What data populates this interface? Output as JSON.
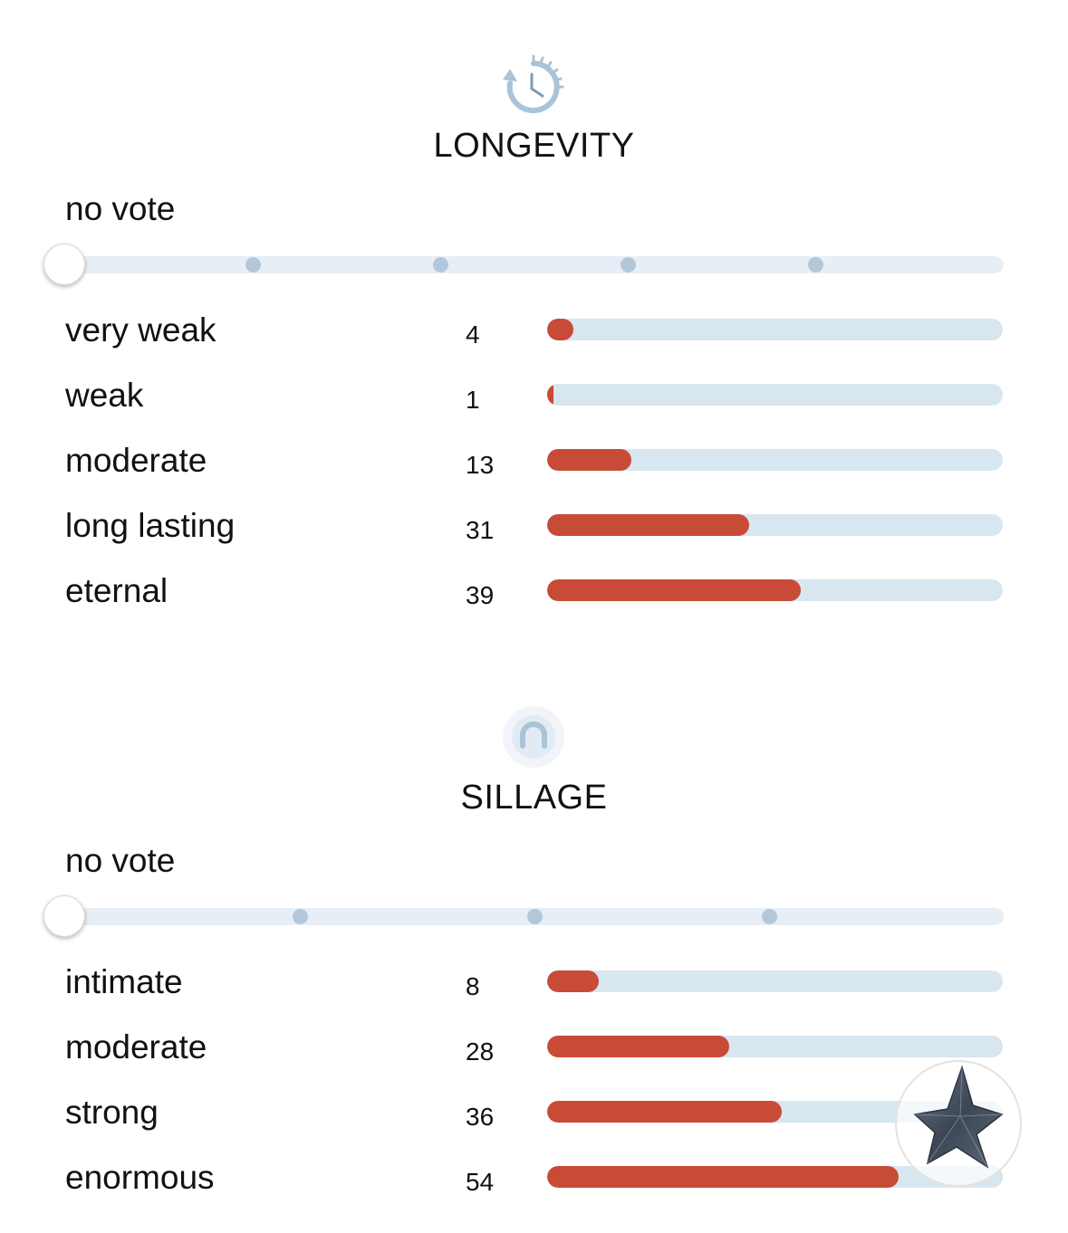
{
  "longevity": {
    "icon": "clock-icon",
    "title": "LONGEVITY",
    "vote_label": "no vote",
    "slider_stops": 6,
    "rows": [
      {
        "label": "very weak",
        "count": "4"
      },
      {
        "label": "weak",
        "count": "1"
      },
      {
        "label": "moderate",
        "count": "13"
      },
      {
        "label": "long lasting",
        "count": "31"
      },
      {
        "label": "eternal",
        "count": "39"
      }
    ]
  },
  "sillage": {
    "icon": "sillage-icon",
    "title": "SILLAGE",
    "vote_label": "no vote",
    "slider_stops": 5,
    "rows": [
      {
        "label": "intimate",
        "count": "8"
      },
      {
        "label": "moderate",
        "count": "28"
      },
      {
        "label": "strong",
        "count": "36"
      },
      {
        "label": "enormous",
        "count": "54"
      }
    ]
  },
  "bar_max": 70,
  "colors": {
    "accent_red": "#c84b38",
    "track": "#d8e6f0",
    "icon_blue": "#a9c3d8"
  },
  "floating_button": {
    "icon": "star-bottle-icon"
  }
}
